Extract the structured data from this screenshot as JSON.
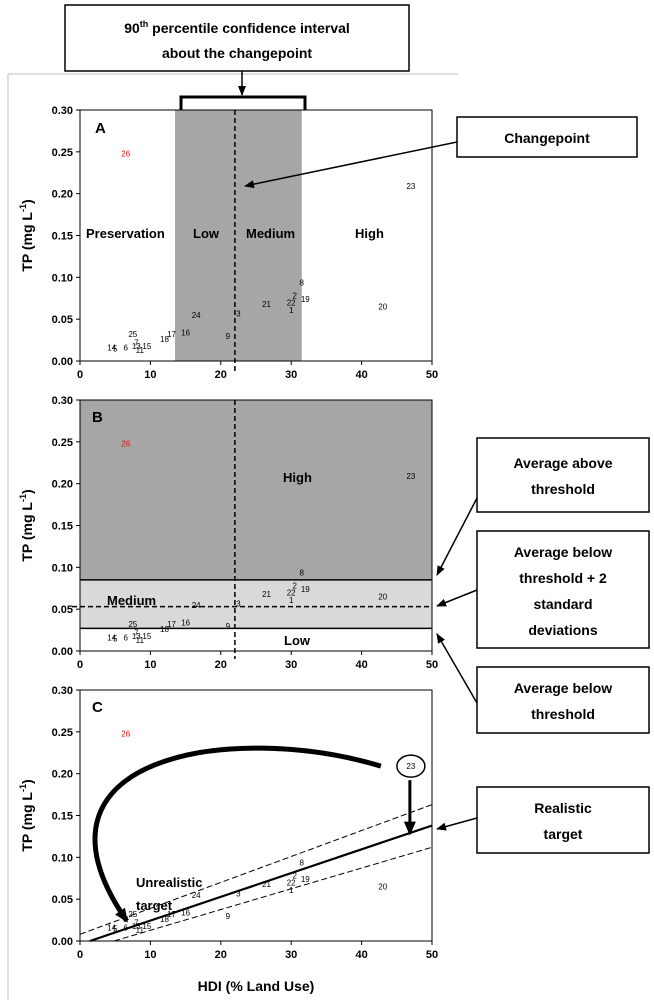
{
  "callouts": {
    "ci_line1_main": "90",
    "ci_line1_sup": "th",
    "ci_line1_rest": " percentile confidence interval",
    "ci_line2": "about the changepoint",
    "changepoint": "Changepoint",
    "avg_above_1": "Average above",
    "avg_above_2": "threshold",
    "avg_below_sd_1": "Average below",
    "avg_below_sd_2": "threshold + 2",
    "avg_below_sd_3": "standard",
    "avg_below_sd_4": "deviations",
    "avg_below_1": "Average below",
    "avg_below_2": "threshold",
    "realistic_1": "Realistic",
    "realistic_2": "target"
  },
  "labels": {
    "unrealistic_1": "Unrealistic",
    "unrealistic_2": "target"
  },
  "colors": {
    "band_dark": "#a6a6a6",
    "band_light": "#d9d9d9",
    "outlier": "#ff0000",
    "ink": "#000000"
  },
  "chart_data": [
    {
      "panel": "A",
      "type": "scatter",
      "xlabel": "",
      "ylabel": "TP (mg L-1)",
      "xlim": [
        0,
        50
      ],
      "ylim": [
        0,
        0.3
      ],
      "xticks": [
        "0",
        "10",
        "20",
        "30",
        "40",
        "50"
      ],
      "yticks": [
        "0.00",
        "0.05",
        "0.10",
        "0.15",
        "0.20",
        "0.25",
        "0.30"
      ],
      "changepoint": 22,
      "ci": [
        13.5,
        31.5
      ],
      "regions": [
        "Preservation",
        "Low",
        "Medium",
        "High"
      ],
      "points": [
        {
          "label": "1",
          "x": 30,
          "y": 0.061
        },
        {
          "label": "2",
          "x": 30.5,
          "y": 0.078
        },
        {
          "label": "3",
          "x": 22.5,
          "y": 0.057
        },
        {
          "label": "5",
          "x": 5,
          "y": 0.015
        },
        {
          "label": "6",
          "x": 6.5,
          "y": 0.016
        },
        {
          "label": "7",
          "x": 8,
          "y": 0.022
        },
        {
          "label": "8",
          "x": 31.5,
          "y": 0.094
        },
        {
          "label": "9",
          "x": 21,
          "y": 0.03
        },
        {
          "label": "11",
          "x": 8.5,
          "y": 0.013
        },
        {
          "label": "13",
          "x": 8,
          "y": 0.018
        },
        {
          "label": "14",
          "x": 4.5,
          "y": 0.016
        },
        {
          "label": "15",
          "x": 9.5,
          "y": 0.018
        },
        {
          "label": "16",
          "x": 15,
          "y": 0.034
        },
        {
          "label": "17",
          "x": 13,
          "y": 0.032
        },
        {
          "label": "18",
          "x": 12,
          "y": 0.026
        },
        {
          "label": "19",
          "x": 32,
          "y": 0.074
        },
        {
          "label": "20",
          "x": 43,
          "y": 0.065
        },
        {
          "label": "21",
          "x": 26.5,
          "y": 0.068
        },
        {
          "label": "22",
          "x": 30,
          "y": 0.07
        },
        {
          "label": "23",
          "x": 47,
          "y": 0.209
        },
        {
          "label": "24",
          "x": 16.5,
          "y": 0.055
        },
        {
          "label": "25",
          "x": 7.5,
          "y": 0.032
        },
        {
          "label": "26",
          "x": 6.5,
          "y": 0.248
        }
      ]
    },
    {
      "panel": "B",
      "type": "scatter",
      "xlabel": "",
      "ylabel": "TP (mg L-1)",
      "xlim": [
        0,
        50
      ],
      "ylim": [
        0,
        0.3
      ],
      "xticks": [
        "0",
        "10",
        "20",
        "30",
        "40",
        "50"
      ],
      "yticks": [
        "0.00",
        "0.05",
        "0.10",
        "0.15",
        "0.20",
        "0.25",
        "0.30"
      ],
      "changepoint": 22,
      "avg_above": 0.085,
      "avg_below_plus_2sd": 0.053,
      "avg_below": 0.027,
      "regions": [
        "High",
        "Medium",
        "Low"
      ]
    },
    {
      "panel": "C",
      "type": "scatter",
      "xlabel": "HDI (% Land Use)",
      "ylabel": "TP (mg L-1)",
      "xlim": [
        0,
        50
      ],
      "ylim": [
        0,
        0.3
      ],
      "xticks": [
        "0",
        "10",
        "20",
        "30",
        "40",
        "50"
      ],
      "yticks": [
        "0.00",
        "0.05",
        "0.10",
        "0.15",
        "0.20",
        "0.25",
        "0.30"
      ],
      "regression": {
        "intercept": -0.004,
        "slope": 0.00284
      },
      "confidence_band": {
        "upper": [
          [
            0,
            0.008
          ],
          [
            50,
            0.163
          ]
        ],
        "lower": [
          [
            0,
            -0.012
          ],
          [
            50,
            0.112
          ]
        ]
      },
      "realistic_target": {
        "x": 47,
        "y": 0.126
      },
      "unrealistic_target": {
        "x": 7.5,
        "y": 0.012
      }
    }
  ]
}
